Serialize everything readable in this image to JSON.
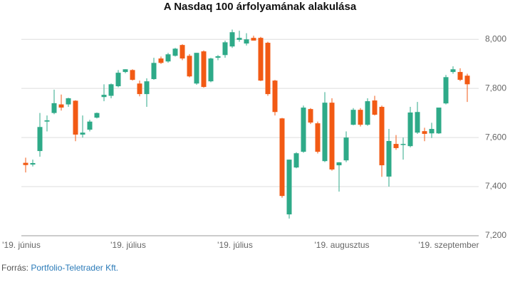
{
  "chart_data": {
    "type": "candlestick",
    "title": "A Nasdaq 100 árfolyamának alakulása",
    "categories": [
      "'19. június",
      null,
      null,
      null,
      null,
      null,
      null,
      null,
      null,
      null,
      null,
      null,
      null,
      null,
      null,
      "'19. július",
      null,
      null,
      null,
      null,
      null,
      null,
      null,
      null,
      null,
      null,
      null,
      null,
      null,
      null,
      "'19. július",
      null,
      null,
      null,
      null,
      null,
      null,
      null,
      null,
      null,
      null,
      null,
      null,
      null,
      null,
      "'19. augusztus",
      null,
      null,
      null,
      null,
      null,
      null,
      null,
      null,
      null,
      null,
      null,
      null,
      null,
      null,
      "'19. szeptember",
      null,
      null
    ],
    "open": [
      7497,
      7490,
      7545,
      7665,
      7700,
      7735,
      7735,
      7750,
      7612,
      7632,
      7681,
      7765,
      7770,
      7809,
      7867,
      7875,
      7820,
      7777,
      7838,
      7922,
      7910,
      7933,
      7977,
      7933,
      7820,
      7951,
      7829,
      7925,
      7936,
      7971,
      7998,
      7983,
      8006,
      8006,
      7986,
      7832,
      7678,
      7287,
      7478,
      7542,
      7716,
      7658,
      7504,
      7742,
      7487,
      7507,
      7652,
      7713,
      7652,
      7751,
      7725,
      7441,
      7574,
      7571,
      7565,
      7620,
      7626,
      7617,
      7617,
      7739,
      7867,
      7867,
      7852
    ],
    "high": [
      7518,
      7510,
      7700,
      7690,
      7795,
      7775,
      7762,
      7752,
      7690,
      7672,
      7702,
      7817,
      7820,
      7875,
      7878,
      7878,
      7832,
      7841,
      7925,
      7930,
      7945,
      7965,
      7980,
      7940,
      7945,
      7955,
      7925,
      7936,
      7995,
      8040,
      8035,
      8025,
      8015,
      8010,
      7990,
      7835,
      7680,
      7510,
      7540,
      7730,
      7720,
      7665,
      7785,
      7760,
      7500,
      7625,
      7720,
      7720,
      7760,
      7770,
      7730,
      7635,
      7610,
      7600,
      7725,
      7745,
      7640,
      7660,
      7720,
      7855,
      7890,
      7882,
      7860
    ],
    "low": [
      7458,
      7482,
      7522,
      7625,
      7695,
      7710,
      7725,
      7585,
      7600,
      7625,
      7678,
      7748,
      7760,
      7805,
      7862,
      7832,
      7768,
      7725,
      7835,
      7900,
      7905,
      7930,
      7915,
      7845,
      7815,
      7803,
      7825,
      7915,
      7925,
      7965,
      7990,
      7975,
      7995,
      7830,
      7770,
      7690,
      7355,
      7270,
      7475,
      7538,
      7655,
      7535,
      7500,
      7465,
      7380,
      7500,
      7650,
      7645,
      7648,
      7690,
      7440,
      7400,
      7550,
      7510,
      7560,
      7615,
      7585,
      7598,
      7615,
      7735,
      7860,
      7830,
      7745
    ],
    "close": [
      7488,
      7496,
      7643,
      7670,
      7740,
      7722,
      7760,
      7612,
      7620,
      7665,
      7700,
      7774,
      7817,
      7864,
      7878,
      7835,
      7777,
      7829,
      7904,
      7904,
      7939,
      7962,
      7922,
      7849,
      7945,
      7806,
      7922,
      7931,
      7988,
      8029,
      8006,
      8000,
      7995,
      7832,
      7777,
      7704,
      7362,
      7510,
      7536,
      7722,
      7661,
      7542,
      7742,
      7470,
      7499,
      7600,
      7713,
      7652,
      7748,
      7693,
      7487,
      7586,
      7557,
      7574,
      7702,
      7704,
      7615,
      7635,
      7722,
      7846,
      7878,
      7835,
      7817
    ],
    "up_color": "#2eaa88",
    "down_color": "#f25a14",
    "ylim": [
      7200,
      8050
    ],
    "yticks": [
      {
        "value": 7200,
        "label": "7,200"
      },
      {
        "value": 7400,
        "label": "7,400"
      },
      {
        "value": 7600,
        "label": "7,600"
      },
      {
        "value": 7800,
        "label": "7,800"
      },
      {
        "value": 8000,
        "label": "8,000"
      }
    ],
    "grid": true
  },
  "source": {
    "label": "Forrás:",
    "text": "Portfolio-Teletrader Kft."
  }
}
